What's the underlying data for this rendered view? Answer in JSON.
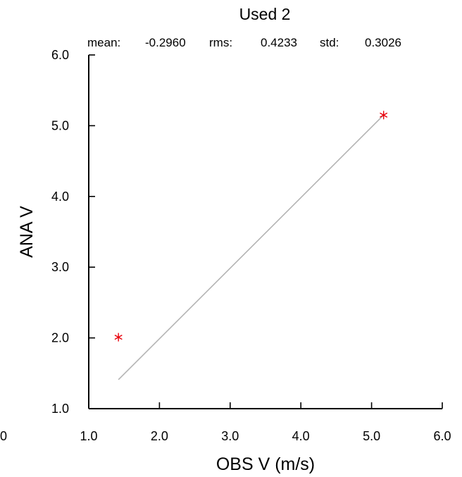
{
  "colors": {
    "marker": "#e8000b",
    "fit_line": "#b4b4b4",
    "axis": "#000000",
    "background": "#ffffff"
  },
  "chart_data": {
    "type": "scatter",
    "title": "Used  2",
    "stats": [
      {
        "label": "mean:",
        "value": "-0.2960"
      },
      {
        "label": "rms:",
        "value": "0.4233"
      },
      {
        "label": "std:",
        "value": "0.3026"
      }
    ],
    "xlabel": "OBS V  (m/s)",
    "ylabel": "ANA V",
    "xlim": [
      1.0,
      6.0
    ],
    "ylim": [
      1.0,
      6.0
    ],
    "x_ticks": [
      1.0,
      2.0,
      3.0,
      4.0,
      5.0,
      6.0
    ],
    "x_tick_labels": [
      "1.0",
      "2.0",
      "3.0",
      "4.0",
      "5.0",
      "6.0"
    ],
    "y_ticks": [
      1.0,
      2.0,
      3.0,
      4.0,
      5.0,
      6.0
    ],
    "y_tick_labels": [
      "1.0",
      "2.0",
      "3.0",
      "4.0",
      "5.0",
      "6.0"
    ],
    "extra_left_tick_label": "0",
    "grid": false,
    "marker": "asterisk",
    "points": [
      {
        "x": 1.42,
        "y": 2.01
      },
      {
        "x": 5.17,
        "y": 5.15
      }
    ],
    "fit_line": {
      "x": [
        1.42,
        5.17
      ],
      "y": [
        1.41,
        5.15
      ]
    }
  }
}
